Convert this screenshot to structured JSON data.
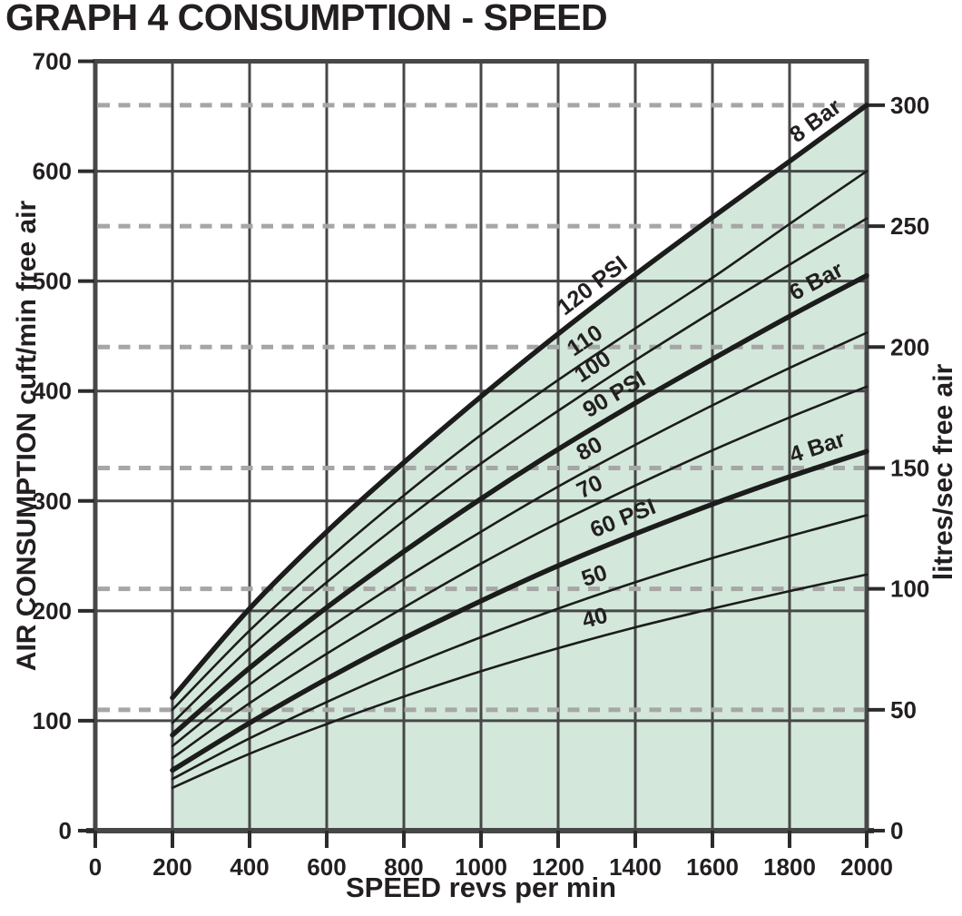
{
  "chart_data": {
    "type": "line",
    "title": "GRAPH 4 CONSUMPTION - SPEED",
    "xlabel": "SPEED revs per min",
    "ylabel_left": "AIR CONSUMPTION cuft/min free air",
    "ylabel_right": "litres/sec free air",
    "x_axis": {
      "min": 0,
      "max": 2000,
      "ticks": [
        0,
        200,
        400,
        600,
        800,
        1000,
        1200,
        1400,
        1600,
        1800,
        2000
      ]
    },
    "y_axis_left": {
      "min": 0,
      "max": 700,
      "ticks": [
        0,
        100,
        200,
        300,
        400,
        500,
        600,
        700
      ]
    },
    "y_axis_right": {
      "min": 0,
      "max": 300,
      "ticks": [
        0,
        50,
        100,
        150,
        200,
        250,
        300
      ],
      "cuft_per_litre_sec": 2.2
    },
    "dashed_gridlines_litres_sec": [
      50,
      100,
      150,
      200,
      250,
      300
    ],
    "grid": true,
    "x": [
      200,
      400,
      600,
      800,
      1000,
      1200,
      1400,
      1600,
      1800,
      2000
    ],
    "series": [
      {
        "pressure_psi": 120,
        "curve_label": "120 PSI",
        "bar_label": "8 Bar",
        "bold": true,
        "label_rpm": 1300,
        "bar_label_rpm": 1878,
        "values": [
          121,
          202,
          272,
          335,
          395,
          452,
          506,
          558,
          609,
          660
        ]
      },
      {
        "pressure_psi": 110,
        "curve_label": "110",
        "bar_label": null,
        "bold": false,
        "label_rpm": 1280,
        "bar_label_rpm": null,
        "values": [
          110,
          182,
          246,
          305,
          360,
          410,
          457,
          503,
          552,
          600
        ]
      },
      {
        "pressure_psi": 100,
        "curve_label": "100",
        "bar_label": null,
        "bold": false,
        "label_rpm": 1300,
        "bar_label_rpm": null,
        "values": [
          98,
          166,
          226,
          282,
          334,
          382,
          428,
          472,
          515,
          557
        ]
      },
      {
        "pressure_psi": 90,
        "curve_label": "90 PSI",
        "bar_label": "6 Bar",
        "bold": true,
        "label_rpm": 1355,
        "bar_label_rpm": 1878,
        "values": [
          87,
          148,
          203,
          254,
          302,
          347,
          389,
          429,
          468,
          505
        ]
      },
      {
        "pressure_psi": 80,
        "curve_label": "80",
        "bar_label": null,
        "bold": false,
        "label_rpm": 1290,
        "bar_label_rpm": null,
        "values": [
          77,
          133,
          183,
          229,
          272,
          313,
          351,
          387,
          421,
          453
        ]
      },
      {
        "pressure_psi": 70,
        "curve_label": "70",
        "bar_label": null,
        "bold": false,
        "label_rpm": 1290,
        "bar_label_rpm": null,
        "values": [
          66,
          116,
          161,
          203,
          243,
          280,
          314,
          346,
          376,
          404
        ]
      },
      {
        "pressure_psi": 60,
        "curve_label": "60 PSI",
        "bar_label": "4 Bar",
        "bold": true,
        "label_rpm": 1375,
        "bar_label_rpm": 1878,
        "values": [
          55,
          98,
          138,
          175,
          209,
          241,
          270,
          297,
          322,
          345
        ]
      },
      {
        "pressure_psi": 50,
        "curve_label": "50",
        "bar_label": null,
        "bold": false,
        "label_rpm": 1300,
        "bar_label_rpm": null,
        "values": [
          47,
          84,
          117,
          148,
          176,
          202,
          226,
          248,
          268,
          287
        ]
      },
      {
        "pressure_psi": 40,
        "curve_label": "40",
        "bar_label": null,
        "bold": false,
        "label_rpm": 1300,
        "bar_label_rpm": null,
        "values": [
          39,
          70,
          97,
          122,
          145,
          166,
          185,
          202,
          218,
          233
        ]
      }
    ],
    "colors": {
      "background": "#ffffff",
      "shaded_region_fill": "#d3e8db",
      "curve": "#1c1c1c",
      "grid": "#474747",
      "dashed": "#a6a6a6",
      "text": "#231f20"
    }
  }
}
